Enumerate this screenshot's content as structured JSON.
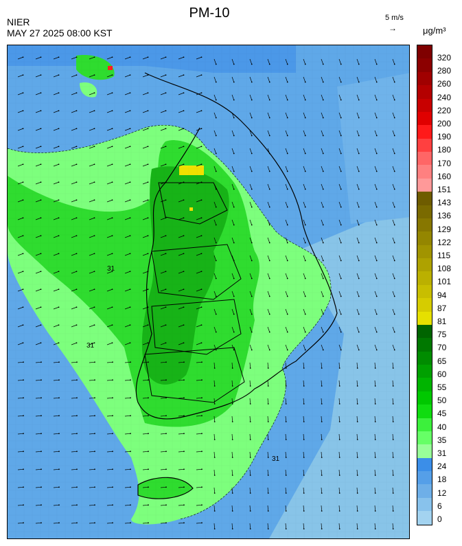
{
  "header": {
    "title": "PM-10",
    "agency": "NIER",
    "timestamp": "MAY 27 2025 08:00 KST",
    "wind_reference": "5 m/s",
    "wind_reference_arrow": "→",
    "unit": "μg/m³"
  },
  "map": {
    "type": "filled-contour concentration map with wind vectors",
    "contour_label": "31",
    "region_colors": {
      "sea_low": "#88c4e8",
      "sea_mid": "#5fa8e8",
      "sea_high": "#3f8fe8",
      "green_light": "#7dff7d",
      "green": "#2fdc2f",
      "green_mid": "#17c217",
      "green_dark": "#0a8c0a",
      "yellow": "#f0e000",
      "red": "#ff0000"
    }
  },
  "colorbar": {
    "labels": [
      "320",
      "280",
      "260",
      "240",
      "220",
      "200",
      "190",
      "180",
      "170",
      "160",
      "151",
      "143",
      "136",
      "129",
      "122",
      "115",
      "108",
      "101",
      "94",
      "87",
      "81",
      "75",
      "70",
      "65",
      "60",
      "55",
      "50",
      "45",
      "40",
      "35",
      "31",
      "24",
      "18",
      "12",
      "6",
      "0"
    ],
    "colors": [
      "#7f0000",
      "#8c0000",
      "#a00000",
      "#b40000",
      "#c80000",
      "#e00000",
      "#ff1a1a",
      "#ff4040",
      "#ff6666",
      "#ff8080",
      "#ff9999",
      "#6e5c00",
      "#7a6a00",
      "#877700",
      "#948600",
      "#a19400",
      "#aea200",
      "#bbb000",
      "#c8be00",
      "#d6cc00",
      "#e6e000",
      "#006400",
      "#007800",
      "#008c00",
      "#00a000",
      "#00b400",
      "#00c800",
      "#10dc10",
      "#3cf03c",
      "#66ff66",
      "#99ff99",
      "#3b8ee8",
      "#559fe8",
      "#6eafe8",
      "#88c2ec",
      "#a3d3f0"
    ]
  }
}
